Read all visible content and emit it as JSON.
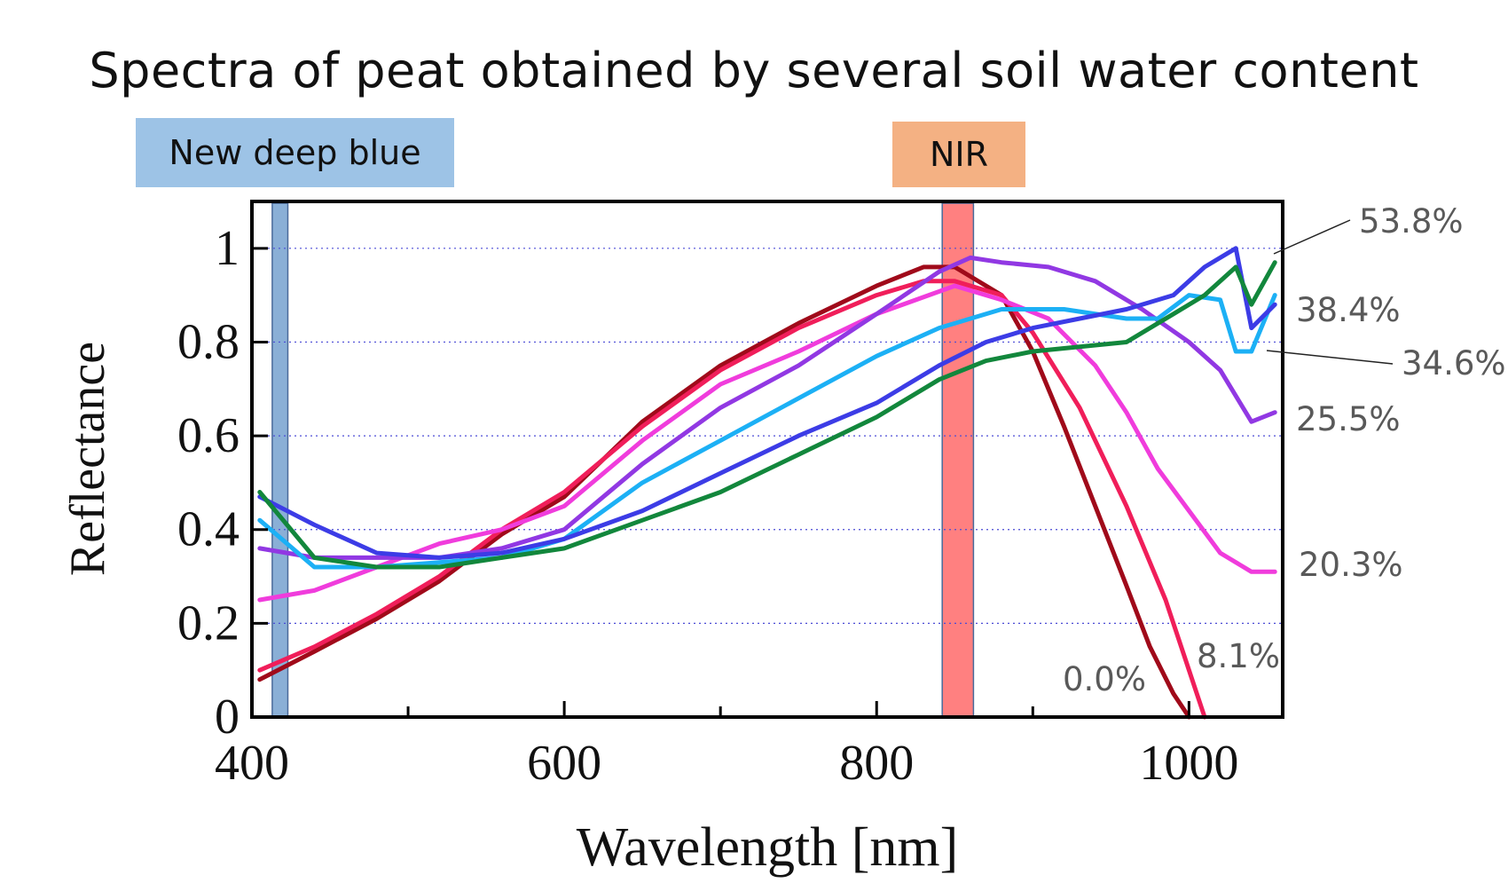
{
  "title": "Spectra of peat obtained by several soil water content",
  "bands": {
    "blue": {
      "label": "New deep blue",
      "range": [
        413,
        423
      ],
      "color": "#8aafd6"
    },
    "nir": {
      "label": "NIR",
      "range": [
        842,
        862
      ],
      "color": "#ff8080"
    }
  },
  "chart_data": {
    "type": "line",
    "title": "Spectra of peat obtained by several soil water content",
    "xlabel": "Wavelength [nm]",
    "ylabel": "Reflectance",
    "xlim": [
      400,
      1060
    ],
    "ylim": [
      0,
      1.1
    ],
    "x_ticks": [
      400,
      600,
      800,
      1000
    ],
    "y_ticks": [
      0,
      0.2,
      0.4,
      0.6,
      0.8,
      1
    ],
    "y_tick_labels": [
      "0",
      "0.2",
      "0.4",
      "0.6",
      "0.8",
      "1"
    ],
    "grid": "dotted horizontal",
    "series": [
      {
        "name": "0.0%",
        "label": "0.0%",
        "color": "#a00a1a",
        "x": [
          405,
          440,
          480,
          520,
          560,
          600,
          650,
          700,
          750,
          800,
          830,
          850,
          880,
          900,
          920,
          940,
          960,
          975,
          990,
          1000
        ],
        "y": [
          0.08,
          0.14,
          0.21,
          0.29,
          0.39,
          0.47,
          0.63,
          0.75,
          0.84,
          0.92,
          0.96,
          0.96,
          0.9,
          0.78,
          0.62,
          0.45,
          0.28,
          0.15,
          0.05,
          0
        ]
      },
      {
        "name": "8.1%",
        "label": "8.1%",
        "color": "#f01e5a",
        "x": [
          405,
          440,
          480,
          520,
          560,
          600,
          650,
          700,
          750,
          800,
          830,
          850,
          880,
          900,
          930,
          960,
          985,
          1000,
          1010
        ],
        "y": [
          0.1,
          0.15,
          0.22,
          0.3,
          0.4,
          0.48,
          0.62,
          0.74,
          0.83,
          0.9,
          0.93,
          0.93,
          0.9,
          0.82,
          0.66,
          0.45,
          0.25,
          0.1,
          0
        ]
      },
      {
        "name": "20.3%",
        "label": "20.3%",
        "color": "#f03cdc",
        "x": [
          405,
          440,
          480,
          520,
          560,
          600,
          650,
          700,
          750,
          800,
          850,
          880,
          910,
          940,
          960,
          980,
          1000,
          1020,
          1040,
          1055
        ],
        "y": [
          0.25,
          0.27,
          0.32,
          0.37,
          0.4,
          0.45,
          0.59,
          0.71,
          0.78,
          0.86,
          0.92,
          0.89,
          0.85,
          0.75,
          0.65,
          0.53,
          0.44,
          0.35,
          0.31,
          0.31
        ]
      },
      {
        "name": "25.5%",
        "label": "25.5%",
        "color": "#9138e3",
        "x": [
          405,
          440,
          480,
          520,
          560,
          600,
          650,
          700,
          750,
          800,
          840,
          860,
          880,
          910,
          940,
          970,
          1000,
          1020,
          1040,
          1055
        ],
        "y": [
          0.36,
          0.34,
          0.34,
          0.34,
          0.36,
          0.4,
          0.54,
          0.66,
          0.75,
          0.86,
          0.95,
          0.98,
          0.97,
          0.96,
          0.93,
          0.87,
          0.8,
          0.74,
          0.63,
          0.65
        ]
      },
      {
        "name": "34.6%",
        "label": "34.6%",
        "color": "#1cb0f5",
        "x": [
          405,
          440,
          480,
          520,
          560,
          600,
          650,
          700,
          750,
          800,
          840,
          880,
          920,
          960,
          980,
          1000,
          1020,
          1030,
          1040,
          1055
        ],
        "y": [
          0.42,
          0.32,
          0.32,
          0.33,
          0.34,
          0.38,
          0.5,
          0.59,
          0.68,
          0.77,
          0.83,
          0.87,
          0.87,
          0.85,
          0.85,
          0.9,
          0.89,
          0.78,
          0.78,
          0.9
        ]
      },
      {
        "name": "38.4%",
        "label": "38.4%",
        "color": "#3c3ce6",
        "x": [
          405,
          440,
          480,
          520,
          560,
          600,
          650,
          700,
          750,
          800,
          840,
          870,
          900,
          930,
          960,
          990,
          1010,
          1030,
          1040,
          1055
        ],
        "y": [
          0.47,
          0.41,
          0.35,
          0.34,
          0.35,
          0.38,
          0.44,
          0.52,
          0.6,
          0.67,
          0.75,
          0.8,
          0.83,
          0.85,
          0.87,
          0.9,
          0.96,
          1.0,
          0.83,
          0.88
        ]
      },
      {
        "name": "53.8%",
        "label": "53.8%",
        "color": "#12873c",
        "x": [
          405,
          440,
          480,
          520,
          560,
          600,
          650,
          700,
          750,
          800,
          840,
          870,
          900,
          930,
          960,
          990,
          1010,
          1030,
          1040,
          1055
        ],
        "y": [
          0.48,
          0.34,
          0.32,
          0.32,
          0.34,
          0.36,
          0.42,
          0.48,
          0.56,
          0.64,
          0.72,
          0.76,
          0.78,
          0.79,
          0.8,
          0.86,
          0.9,
          0.96,
          0.88,
          0.97
        ]
      }
    ]
  }
}
